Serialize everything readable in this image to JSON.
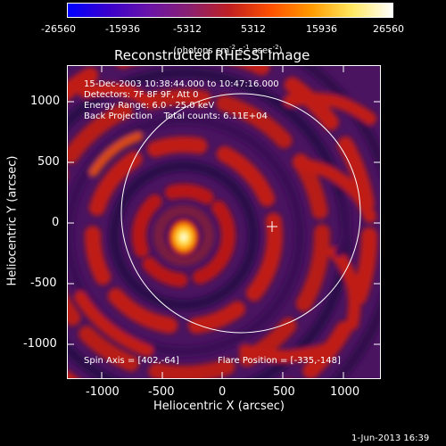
{
  "colorbar": {
    "tick_labels": [
      "-26560",
      "-15936",
      "-5312",
      "5312",
      "15936",
      "26560"
    ],
    "unit_label": "(photons cm",
    "unit_exp1": "-2",
    "unit_mid": " s",
    "unit_exp2": "-1",
    "unit_end": " asec",
    "unit_exp3": "-2",
    "unit_close": ")",
    "colormap": [
      "#0000ff",
      "#3a00cc",
      "#6a14a8",
      "#8a2070",
      "#c02020",
      "#ff5000",
      "#ff9a00",
      "#ffe860",
      "#ffffff"
    ]
  },
  "plot": {
    "title": "Reconstructed RHESSI Image",
    "x_label": "Heliocentric X (arcsec)",
    "y_label": "Heliocentric Y (arcsec)",
    "x_ticks": [
      "-1000",
      "-500",
      "0",
      "500",
      "1000"
    ],
    "y_ticks": [
      "1000",
      "500",
      "0",
      "-500",
      "-1000"
    ],
    "info_lines": [
      "15-Dec-2003 10:38:44.000 to 10:47:16.000",
      "Detectors: 7F 8F 9F, Att 0",
      "Energy Range: 6.0 - 25.0 keV",
      "Back Projection    Total counts: 6.11E+04"
    ],
    "spin_axis": "Spin Axis = [402,-64]",
    "flare_position": "Flare Position = [-335,-148]"
  },
  "footer": {
    "date": "1-Jun-2013 16:39"
  }
}
